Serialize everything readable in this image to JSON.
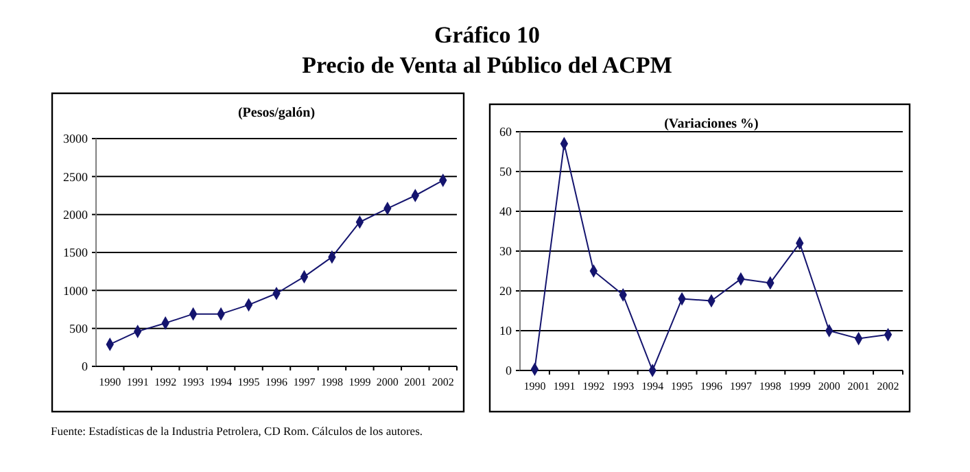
{
  "chart_data": [
    {
      "type": "line",
      "title": "Gráfico 10",
      "subtitle": "Precio de Venta al Público del ACPM",
      "ylabel": "(Pesos/galón)",
      "categories": [
        "1990",
        "1991",
        "1992",
        "1993",
        "1994",
        "1995",
        "1996",
        "1997",
        "1998",
        "1999",
        "2000",
        "2001",
        "2002"
      ],
      "series": [
        {
          "color": "#14146e",
          "values": [
            290,
            460,
            570,
            690,
            690,
            810,
            960,
            1180,
            1440,
            1900,
            2080,
            2250,
            2450
          ]
        }
      ],
      "ylim": [
        0,
        3000
      ],
      "yticks": [
        0,
        500,
        1000,
        1500,
        2000,
        2500,
        3000
      ],
      "grid": "y",
      "marker": "diamond",
      "line_style": "solid",
      "annotations": [
        "Fuente: Estadísticas de la Industria Petrolera, CD Rom. Cálculos de los autores."
      ]
    },
    {
      "type": "line",
      "ylabel": "(Variaciones %)",
      "categories": [
        "1990",
        "1991",
        "1992",
        "1993",
        "1994",
        "1995",
        "1996",
        "1997",
        "1998",
        "1999",
        "2000",
        "2001",
        "2002"
      ],
      "series": [
        {
          "color": "#14146e",
          "values": [
            0.3,
            57,
            25,
            19,
            0,
            18,
            17.5,
            23,
            22,
            32,
            10,
            8,
            9
          ]
        }
      ],
      "ylim": [
        0,
        60
      ],
      "yticks": [
        0,
        10,
        20,
        30,
        40,
        50,
        60
      ],
      "grid": "y",
      "marker": "diamond",
      "line_style": "solid"
    }
  ]
}
